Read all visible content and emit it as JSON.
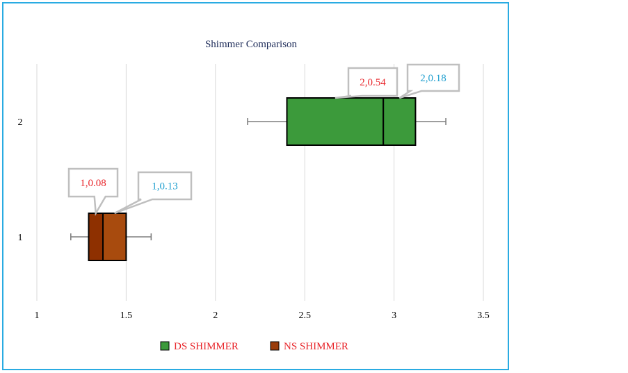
{
  "chart_data": {
    "type": "boxplot",
    "orientation": "horizontal",
    "title": "Shimmer Comparison",
    "xlabel": "",
    "ylabel": "",
    "xlim": [
      1,
      3.5
    ],
    "xticks": [
      "1",
      "1.5",
      "2",
      "2.5",
      "3",
      "3.5"
    ],
    "xtick_values": [
      1,
      1.5,
      2,
      2.5,
      3,
      3.5
    ],
    "categories": [
      "1",
      "2"
    ],
    "grid": true,
    "series": [
      {
        "name": "NS SHIMMER",
        "category": "1",
        "min": 1.19,
        "q1": 1.29,
        "median": 1.37,
        "q3": 1.5,
        "max": 1.64,
        "color": "#8e3000",
        "upper_color": "#a84b0e"
      },
      {
        "name": "DS SHIMMER",
        "category": "2",
        "min": 2.18,
        "q1": 2.4,
        "median": 2.94,
        "q3": 3.12,
        "max": 3.29,
        "color": "#3c9a3b",
        "upper_color": "#3c9a3b"
      }
    ],
    "annotations": [
      {
        "text": "1,0.08",
        "color": "#e8262b",
        "series": "NS SHIMMER",
        "anchor": "lower"
      },
      {
        "text": "1,0.13",
        "color": "#1f9fcf",
        "series": "NS SHIMMER",
        "anchor": "upper"
      },
      {
        "text": "2,0.54",
        "color": "#e8262b",
        "series": "DS SHIMMER",
        "anchor": "lower"
      },
      {
        "text": "2,0.18",
        "color": "#1f9fcf",
        "series": "DS SHIMMER",
        "anchor": "upper"
      }
    ],
    "legend": {
      "position": "bottom",
      "entries": [
        {
          "label": "DS SHIMMER",
          "color": "#3c9a3b",
          "text_color": "#e8262b"
        },
        {
          "label": "NS SHIMMER",
          "color": "#9a3c0b",
          "text_color": "#e8262b"
        }
      ]
    }
  }
}
